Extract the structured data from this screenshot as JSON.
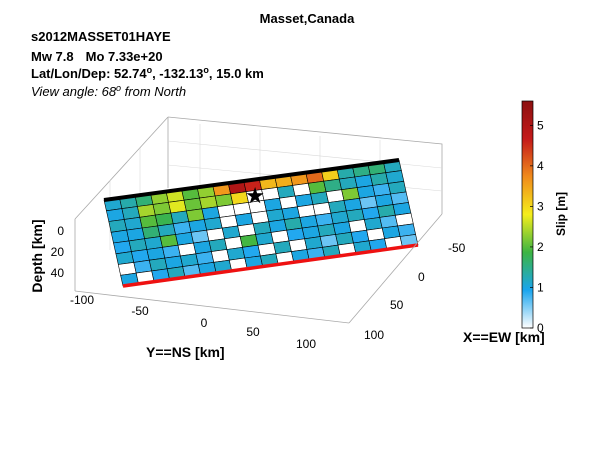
{
  "chart_data": {
    "type": "heatmap",
    "title": "Masset,Canada",
    "header": {
      "event_id": "s2012MASSET01HAYE",
      "magnitude": "Mw 7.8",
      "moment": "Mo 7.33e+20",
      "location_label": "Lat/Lon/Dep: 52.74",
      "lon_part": ", -132.13",
      "dep_part": ", 15.0 km",
      "degree_symbol": "o",
      "view_prefix": "View angle:  68",
      "view_suffix": " from North"
    },
    "axes": {
      "xlabel": "X==EW [km]",
      "ylabel": "Y==NS [km]",
      "zlabel": "Depth [km]",
      "x_ticks": [
        "-50",
        "0",
        "50",
        "100"
      ],
      "y_ticks": [
        "-100",
        "-50",
        "0",
        "50",
        "100"
      ],
      "z_ticks": [
        "0",
        "20",
        "40"
      ],
      "grid": true
    },
    "colorbar": {
      "label": "Slip [m]",
      "range": [
        0,
        5.6
      ],
      "ticks": [
        "0",
        "1",
        "2",
        "3",
        "4",
        "5"
      ],
      "stops": [
        "#ffffff",
        "#1aa5ee",
        "#3cb443",
        "#f5ee1c",
        "#f08a1c",
        "#c41a1a",
        "#8c1010"
      ]
    },
    "fault": {
      "strike_cells": 19,
      "dip_cells": 8,
      "top_edge_color": "#000000",
      "bottom_edge_color": "#ee1111",
      "hypocenter_cell": [
        9,
        1
      ]
    },
    "slip": [
      [
        1.1,
        1.3,
        1.6,
        2.3,
        2.6,
        2.0,
        2.3,
        3.6,
        5.0,
        4.6,
        3.3,
        3.4,
        3.6,
        4.0,
        3.1,
        1.3,
        1.5,
        1.6,
        1.2
      ],
      [
        1.0,
        1.2,
        2.4,
        2.2,
        2.7,
        2.1,
        2.4,
        2.2,
        3.0,
        0.0,
        0.0,
        1.2,
        0.0,
        2.0,
        1.5,
        1.2,
        1.0,
        1.3,
        1.1
      ],
      [
        1.2,
        1.1,
        2.0,
        1.8,
        1.2,
        2.2,
        1.0,
        0.0,
        0.0,
        0.0,
        1.0,
        0.0,
        1.0,
        1.2,
        0.0,
        2.2,
        1.0,
        0.8,
        1.2
      ],
      [
        1.0,
        1.0,
        1.6,
        1.2,
        0.8,
        1.0,
        1.1,
        0.0,
        1.0,
        0.0,
        1.1,
        1.0,
        0.0,
        0.0,
        1.2,
        1.0,
        0.6,
        1.0,
        0.7
      ],
      [
        0.9,
        1.2,
        1.1,
        2.0,
        1.0,
        0.6,
        0.0,
        1.1,
        0.0,
        1.2,
        1.0,
        1.3,
        1.0,
        0.8,
        1.1,
        1.2,
        0.9,
        1.3,
        1.0
      ],
      [
        1.1,
        0.9,
        1.0,
        0.8,
        0.0,
        1.0,
        1.2,
        0.0,
        1.9,
        1.1,
        0.0,
        0.9,
        1.0,
        1.2,
        1.0,
        0.0,
        1.1,
        0.7,
        0.0
      ],
      [
        0.0,
        0.8,
        1.2,
        1.0,
        1.1,
        0.8,
        0.0,
        1.1,
        0.9,
        0.0,
        1.2,
        0.0,
        1.1,
        0.6,
        1.2,
        0.9,
        0.0,
        1.0,
        0.8
      ],
      [
        1.0,
        0.0,
        0.9,
        1.2,
        0.7,
        1.0,
        1.1,
        0.0,
        1.0,
        1.2,
        0.0,
        1.0,
        0.8,
        1.2,
        0.0,
        1.1,
        0.9,
        0.0,
        0.6
      ]
    ]
  }
}
